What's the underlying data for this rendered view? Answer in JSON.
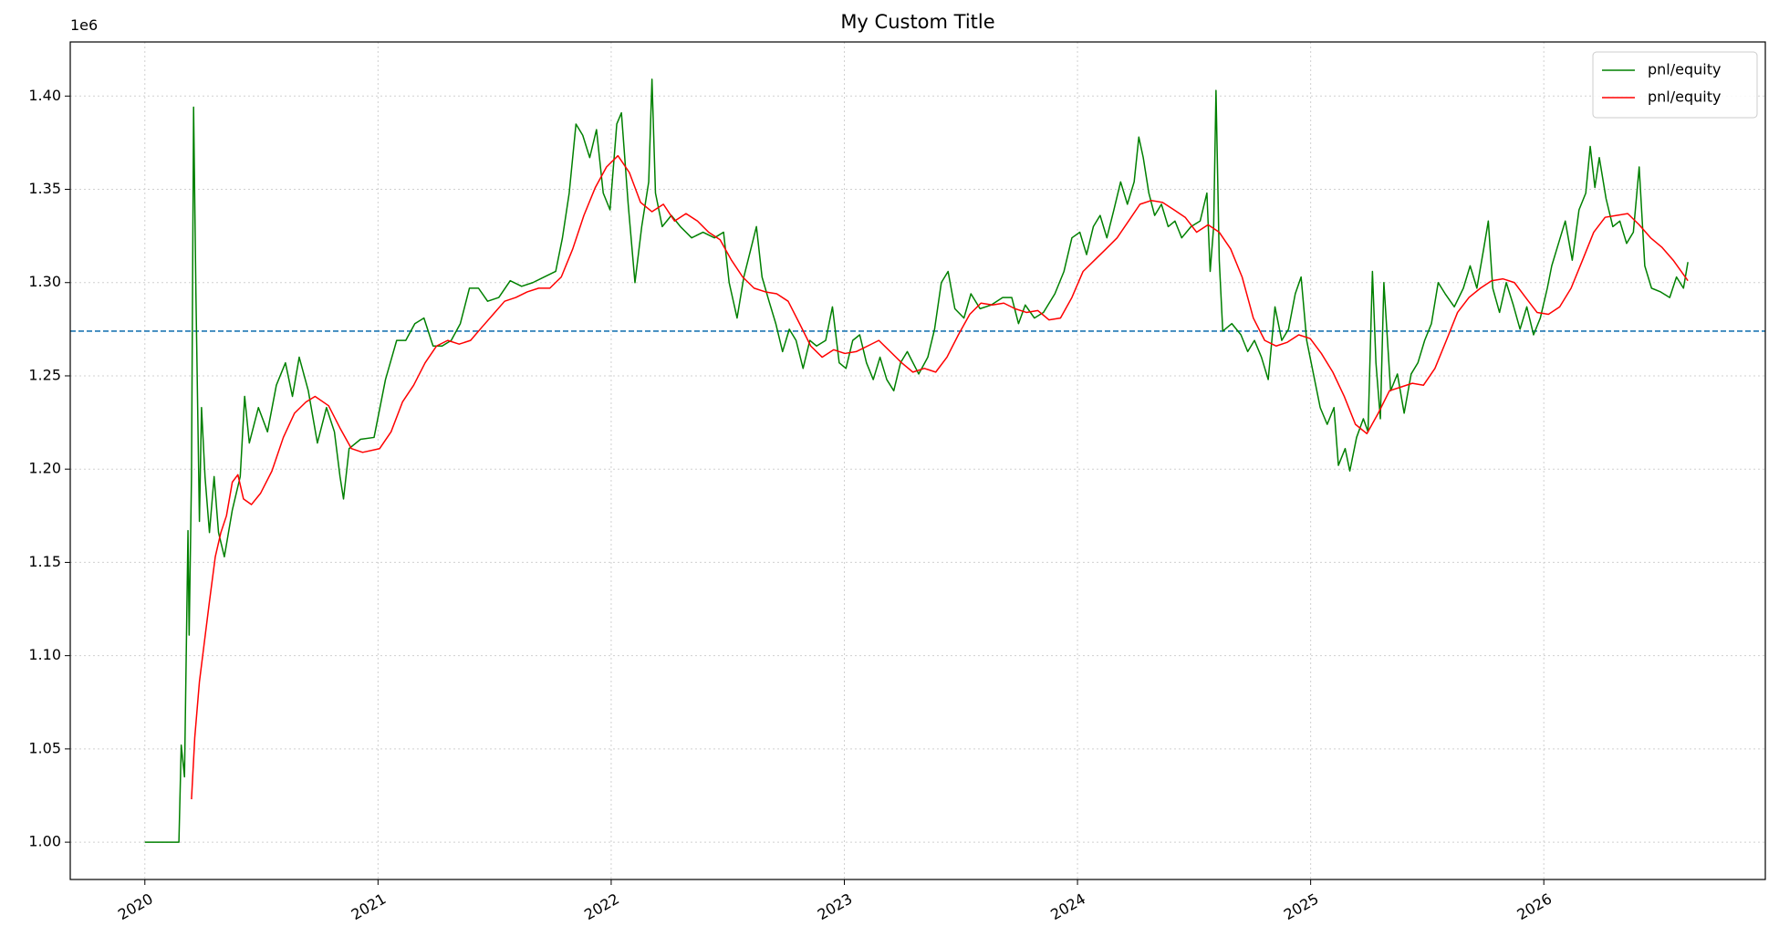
{
  "chart_data": {
    "type": "line",
    "title": "My Custom Title",
    "y_offset_label": "1e6",
    "xlim": [
      2019.68,
      2026.95
    ],
    "xticks": [
      2020,
      2021,
      2022,
      2023,
      2024,
      2025,
      2026
    ],
    "ylim": [
      980000,
      1429000
    ],
    "yticks": [
      {
        "value": 1000000,
        "label": "1.00"
      },
      {
        "value": 1050000,
        "label": "1.05"
      },
      {
        "value": 1100000,
        "label": "1.10"
      },
      {
        "value": 1150000,
        "label": "1.15"
      },
      {
        "value": 1200000,
        "label": "1.20"
      },
      {
        "value": 1250000,
        "label": "1.25"
      },
      {
        "value": 1300000,
        "label": "1.30"
      },
      {
        "value": 1350000,
        "label": "1.35"
      },
      {
        "value": 1400000,
        "label": "1.40"
      }
    ],
    "grid": true,
    "legend": "upper right",
    "hline": {
      "value": 1274000,
      "color": "#1f77b4",
      "style": "dashed"
    },
    "series": [
      {
        "name": "pnl/equity",
        "color": "#008000",
        "x": [
          2020.0,
          2020.146,
          2020.156,
          2020.17,
          2020.185,
          2020.19,
          2020.2,
          2020.209,
          2020.219,
          2020.234,
          2020.243,
          2020.258,
          2020.277,
          2020.297,
          2020.316,
          2020.341,
          2020.375,
          2020.409,
          2020.428,
          2020.448,
          2020.487,
          2020.526,
          2020.564,
          2020.603,
          2020.633,
          2020.662,
          2020.701,
          2020.74,
          2020.779,
          2020.813,
          2020.837,
          2020.852,
          2020.876,
          2020.925,
          2020.983,
          2021.032,
          2021.08,
          2021.119,
          2021.158,
          2021.197,
          2021.236,
          2021.275,
          2021.314,
          2021.353,
          2021.392,
          2021.431,
          2021.47,
          2021.518,
          2021.567,
          2021.616,
          2021.664,
          2021.713,
          2021.762,
          2021.791,
          2021.82,
          2021.849,
          2021.878,
          2021.908,
          2021.937,
          2021.966,
          2021.995,
          2022.024,
          2022.044,
          2022.073,
          2022.102,
          2022.131,
          2022.161,
          2022.175,
          2022.19,
          2022.219,
          2022.258,
          2022.297,
          2022.345,
          2022.394,
          2022.443,
          2022.482,
          2022.506,
          2022.54,
          2022.569,
          2022.599,
          2022.623,
          2022.647,
          2022.677,
          2022.706,
          2022.735,
          2022.764,
          2022.793,
          2022.823,
          2022.852,
          2022.881,
          2022.92,
          2022.949,
          2022.978,
          2023.007,
          2023.036,
          2023.066,
          2023.095,
          2023.124,
          2023.153,
          2023.182,
          2023.212,
          2023.241,
          2023.27,
          2023.319,
          2023.358,
          2023.387,
          2023.416,
          2023.445,
          2023.474,
          2023.513,
          2023.543,
          2023.582,
          2023.63,
          2023.679,
          2023.718,
          2023.747,
          2023.776,
          2023.815,
          2023.854,
          2023.903,
          2023.942,
          2023.976,
          2024.01,
          2024.039,
          2024.068,
          2024.097,
          2024.126,
          2024.156,
          2024.185,
          2024.214,
          2024.243,
          2024.263,
          2024.282,
          2024.306,
          2024.331,
          2024.36,
          2024.389,
          2024.418,
          2024.447,
          2024.487,
          2024.526,
          2024.555,
          2024.569,
          2024.584,
          2024.594,
          2024.608,
          2024.623,
          2024.662,
          2024.701,
          2024.73,
          2024.759,
          2024.789,
          2024.818,
          2024.847,
          2024.876,
          2024.905,
          2024.934,
          2024.959,
          2024.983,
          2025.012,
          2025.041,
          2025.071,
          2025.1,
          2025.119,
          2025.148,
          2025.168,
          2025.197,
          2025.226,
          2025.246,
          2025.265,
          2025.28,
          2025.299,
          2025.314,
          2025.343,
          2025.372,
          2025.401,
          2025.431,
          2025.46,
          2025.489,
          2025.518,
          2025.547,
          2025.577,
          2025.616,
          2025.655,
          2025.684,
          2025.713,
          2025.742,
          2025.762,
          2025.781,
          2025.81,
          2025.839,
          2025.869,
          2025.898,
          2025.927,
          2025.956,
          2025.985,
          2026.015,
          2026.034,
          2026.063,
          2026.092,
          2026.122,
          2026.151,
          2026.18,
          2026.199,
          2026.219,
          2026.238,
          2026.267,
          2026.296,
          2026.326,
          2026.355,
          2026.384,
          2026.409,
          2026.433,
          2026.462,
          2026.501,
          2026.54,
          2026.569,
          2026.599,
          2026.618
        ],
        "values": [
          1000000,
          1000000,
          1052000,
          1035000,
          1167000,
          1111000,
          1196000,
          1394000,
          1294000,
          1172000,
          1233000,
          1196000,
          1166000,
          1196000,
          1166000,
          1153000,
          1178000,
          1196000,
          1239000,
          1214000,
          1233000,
          1220000,
          1245000,
          1257000,
          1239000,
          1260000,
          1242000,
          1214000,
          1233000,
          1220000,
          1196000,
          1184000,
          1211000,
          1216000,
          1217000,
          1248000,
          1269000,
          1269000,
          1278000,
          1281000,
          1266000,
          1266000,
          1269000,
          1278000,
          1297000,
          1297000,
          1290000,
          1292000,
          1301000,
          1298000,
          1300000,
          1303000,
          1306000,
          1324000,
          1348000,
          1385000,
          1379000,
          1367000,
          1382000,
          1348000,
          1339000,
          1385000,
          1391000,
          1342000,
          1300000,
          1330000,
          1354000,
          1409000,
          1348000,
          1330000,
          1336000,
          1330000,
          1324000,
          1327000,
          1324000,
          1327000,
          1300000,
          1281000,
          1303000,
          1318000,
          1330000,
          1303000,
          1290000,
          1278000,
          1263000,
          1275000,
          1269000,
          1254000,
          1269000,
          1266000,
          1269000,
          1287000,
          1257000,
          1254000,
          1269000,
          1272000,
          1257000,
          1248000,
          1260000,
          1248000,
          1242000,
          1257000,
          1263000,
          1251000,
          1260000,
          1275000,
          1300000,
          1306000,
          1286000,
          1281000,
          1294000,
          1286000,
          1288000,
          1292000,
          1292000,
          1278000,
          1288000,
          1281000,
          1284000,
          1294000,
          1306000,
          1324000,
          1327000,
          1315000,
          1330000,
          1336000,
          1324000,
          1339000,
          1354000,
          1342000,
          1354000,
          1378000,
          1367000,
          1348000,
          1336000,
          1342000,
          1330000,
          1333000,
          1324000,
          1330000,
          1333000,
          1348000,
          1306000,
          1330000,
          1403000,
          1312000,
          1274000,
          1278000,
          1272000,
          1263000,
          1269000,
          1260000,
          1248000,
          1287000,
          1269000,
          1275000,
          1294000,
          1303000,
          1269000,
          1251000,
          1233000,
          1224000,
          1233000,
          1202000,
          1211000,
          1199000,
          1217000,
          1227000,
          1220000,
          1306000,
          1257000,
          1227000,
          1300000,
          1242000,
          1251000,
          1230000,
          1251000,
          1257000,
          1269000,
          1278000,
          1300000,
          1294000,
          1287000,
          1297000,
          1309000,
          1297000,
          1318000,
          1333000,
          1297000,
          1284000,
          1300000,
          1288000,
          1275000,
          1287000,
          1272000,
          1281000,
          1297000,
          1309000,
          1321000,
          1333000,
          1312000,
          1339000,
          1348000,
          1373000,
          1351000,
          1367000,
          1345000,
          1330000,
          1333000,
          1321000,
          1327000,
          1362000,
          1309000,
          1297000,
          1295000,
          1292000,
          1303000,
          1297000,
          1311000
        ]
      },
      {
        "name": "pnl/equity",
        "color": "#ff0000",
        "x": [
          2020.2,
          2020.214,
          2020.234,
          2020.253,
          2020.277,
          2020.302,
          2020.326,
          2020.35,
          2020.375,
          2020.399,
          2020.423,
          2020.457,
          2020.496,
          2020.545,
          2020.594,
          2020.642,
          2020.691,
          2020.73,
          2020.788,
          2020.837,
          2020.886,
          2020.934,
          2021.007,
          2021.056,
          2021.105,
          2021.153,
          2021.202,
          2021.251,
          2021.299,
          2021.348,
          2021.397,
          2021.445,
          2021.494,
          2021.543,
          2021.591,
          2021.64,
          2021.689,
          2021.737,
          2021.786,
          2021.835,
          2021.883,
          2021.932,
          2021.98,
          2022.029,
          2022.078,
          2022.126,
          2022.175,
          2022.224,
          2022.272,
          2022.321,
          2022.37,
          2022.418,
          2022.467,
          2022.516,
          2022.564,
          2022.613,
          2022.662,
          2022.71,
          2022.759,
          2022.808,
          2022.856,
          2022.905,
          2022.954,
          2023.002,
          2023.051,
          2023.1,
          2023.148,
          2023.197,
          2023.246,
          2023.294,
          2023.343,
          2023.392,
          2023.44,
          2023.489,
          2023.538,
          2023.586,
          2023.635,
          2023.684,
          2023.732,
          2023.781,
          2023.83,
          2023.878,
          2023.927,
          2023.976,
          2024.024,
          2024.073,
          2024.122,
          2024.17,
          2024.219,
          2024.268,
          2024.316,
          2024.365,
          2024.414,
          2024.462,
          2024.511,
          2024.56,
          2024.608,
          2024.657,
          2024.706,
          2024.754,
          2024.803,
          2024.852,
          2024.9,
          2024.949,
          2024.998,
          2025.046,
          2025.095,
          2025.144,
          2025.192,
          2025.241,
          2025.29,
          2025.338,
          2025.387,
          2025.436,
          2025.484,
          2025.533,
          2025.582,
          2025.63,
          2025.679,
          2025.728,
          2025.776,
          2025.825,
          2025.874,
          2025.922,
          2025.971,
          2026.02,
          2026.068,
          2026.117,
          2026.166,
          2026.214,
          2026.263,
          2026.312,
          2026.36,
          2026.409,
          2026.458,
          2026.506,
          2026.555,
          2026.618
        ],
        "values": [
          1023000,
          1056000,
          1086000,
          1105000,
          1129000,
          1153000,
          1166000,
          1175000,
          1193000,
          1197000,
          1184000,
          1181000,
          1187000,
          1199000,
          1217000,
          1230000,
          1236000,
          1239000,
          1234000,
          1222000,
          1211000,
          1209000,
          1211000,
          1220000,
          1236000,
          1245000,
          1257000,
          1266000,
          1269000,
          1267000,
          1269000,
          1276000,
          1283000,
          1290000,
          1292000,
          1295000,
          1297000,
          1297000,
          1303000,
          1318000,
          1336000,
          1351000,
          1362000,
          1368000,
          1359000,
          1343000,
          1338000,
          1342000,
          1333000,
          1337000,
          1333000,
          1327000,
          1323000,
          1312000,
          1303000,
          1297000,
          1295000,
          1294000,
          1290000,
          1278000,
          1266000,
          1260000,
          1264000,
          1262000,
          1263000,
          1266000,
          1269000,
          1263000,
          1257000,
          1252000,
          1254000,
          1252000,
          1260000,
          1272000,
          1283000,
          1289000,
          1288000,
          1289000,
          1286000,
          1284000,
          1285000,
          1280000,
          1281000,
          1292000,
          1306000,
          1312000,
          1318000,
          1324000,
          1333000,
          1342000,
          1344000,
          1343000,
          1339000,
          1335000,
          1327000,
          1331000,
          1327000,
          1318000,
          1303000,
          1281000,
          1269000,
          1266000,
          1268000,
          1272000,
          1270000,
          1262000,
          1252000,
          1239000,
          1224000,
          1219000,
          1230000,
          1242000,
          1244000,
          1246000,
          1245000,
          1254000,
          1269000,
          1284000,
          1292000,
          1297000,
          1301000,
          1302000,
          1300000,
          1292000,
          1284000,
          1283000,
          1287000,
          1297000,
          1312000,
          1327000,
          1335000,
          1336000,
          1337000,
          1331000,
          1324000,
          1319000,
          1312000,
          1301000
        ]
      }
    ]
  }
}
